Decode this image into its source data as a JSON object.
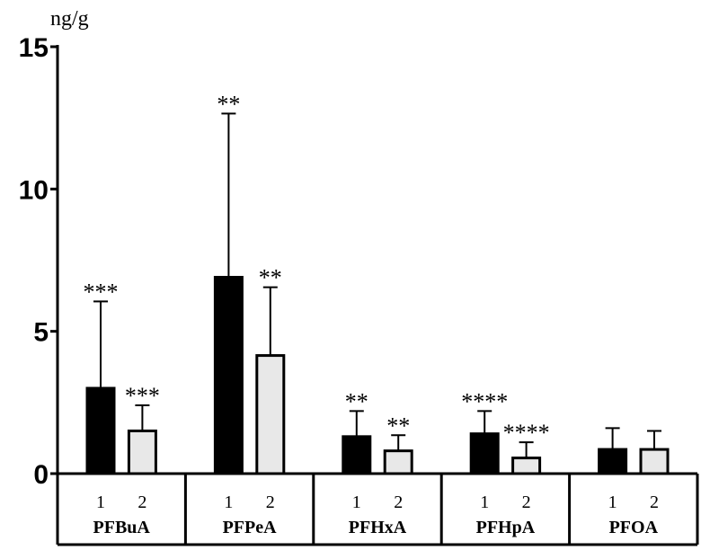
{
  "chart_data": {
    "type": "bar",
    "ylabel": "ng/g",
    "ylim": [
      0,
      15
    ],
    "yticks": [
      "0",
      "5",
      "10",
      "15"
    ],
    "grid": false,
    "categories": [
      "PFBuA",
      "PFPeA",
      "PFHxA",
      "PFHpA",
      "PFOA"
    ],
    "sublabels": [
      "1",
      "2"
    ],
    "series": [
      {
        "color": "#000000",
        "values": [
          3.0,
          6.9,
          1.3,
          1.4,
          0.85
        ],
        "errors": [
          3.05,
          5.75,
          0.9,
          0.8,
          0.75
        ],
        "sig": [
          "***",
          "**",
          "**",
          "****",
          ""
        ]
      },
      {
        "color": "#e8e8e8",
        "values": [
          1.5,
          4.15,
          0.8,
          0.55,
          0.85
        ],
        "errors": [
          0.9,
          2.4,
          0.55,
          0.55,
          0.65
        ],
        "sig": [
          "***",
          "**",
          "**",
          "****",
          ""
        ]
      }
    ]
  }
}
